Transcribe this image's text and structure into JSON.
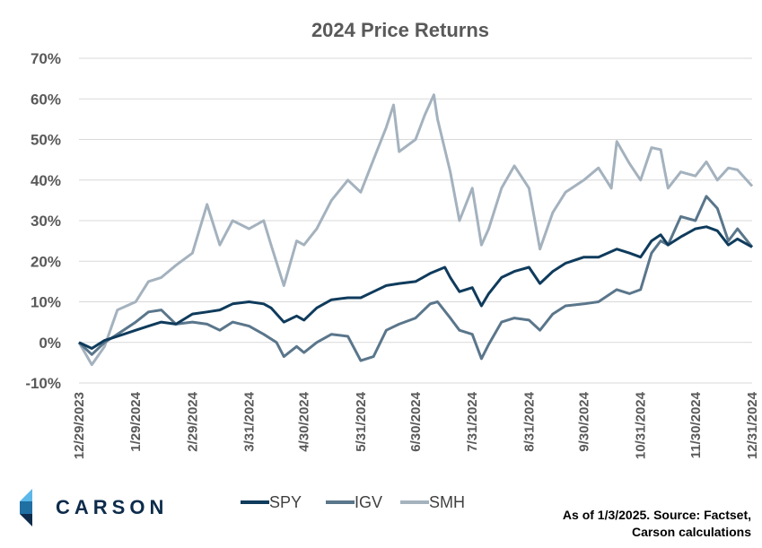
{
  "chart_data": {
    "type": "line",
    "title": "2024 Price Returns",
    "xlabel": "",
    "ylabel": "",
    "ylim": [
      -10,
      70
    ],
    "yticks": [
      "70%",
      "60%",
      "50%",
      "40%",
      "30%",
      "20%",
      "10%",
      "0%",
      "-10%"
    ],
    "ytick_values": [
      70,
      60,
      50,
      40,
      30,
      20,
      10,
      0,
      -10
    ],
    "xticks": [
      "12/29/2023",
      "1/29/2024",
      "2/29/2024",
      "3/31/2024",
      "4/30/2024",
      "5/31/2024",
      "6/30/2024",
      "7/31/2024",
      "8/31/2024",
      "9/30/2024",
      "10/31/2024",
      "11/30/2024",
      "12/31/2024"
    ],
    "grid": "horizontal",
    "legend": "bottom",
    "series": [
      {
        "name": "SPY",
        "color": "#0f3b5c",
        "points": [
          [
            "12/29/2023",
            0
          ],
          [
            "1/5/2024",
            -1.5
          ],
          [
            "1/12/2024",
            0.5
          ],
          [
            "1/19/2024",
            1.5
          ],
          [
            "1/29/2024",
            3
          ],
          [
            "2/5/2024",
            4
          ],
          [
            "2/12/2024",
            5
          ],
          [
            "2/20/2024",
            4.5
          ],
          [
            "2/29/2024",
            7
          ],
          [
            "3/8/2024",
            7.5
          ],
          [
            "3/15/2024",
            8
          ],
          [
            "3/22/2024",
            9.5
          ],
          [
            "3/31/2024",
            10
          ],
          [
            "4/8/2024",
            9.5
          ],
          [
            "4/12/2024",
            8.5
          ],
          [
            "4/19/2024",
            5
          ],
          [
            "4/26/2024",
            6.5
          ],
          [
            "4/30/2024",
            5.5
          ],
          [
            "5/7/2024",
            8.5
          ],
          [
            "5/15/2024",
            10.5
          ],
          [
            "5/24/2024",
            11
          ],
          [
            "5/31/2024",
            11
          ],
          [
            "6/7/2024",
            12.5
          ],
          [
            "6/14/2024",
            14
          ],
          [
            "6/21/2024",
            14.5
          ],
          [
            "6/30/2024",
            15
          ],
          [
            "7/8/2024",
            17
          ],
          [
            "7/16/2024",
            18.5
          ],
          [
            "7/19/2024",
            16
          ],
          [
            "7/24/2024",
            12.5
          ],
          [
            "7/31/2024",
            13.5
          ],
          [
            "8/5/2024",
            9
          ],
          [
            "8/9/2024",
            12
          ],
          [
            "8/16/2024",
            16
          ],
          [
            "8/23/2024",
            17.5
          ],
          [
            "8/31/2024",
            18.5
          ],
          [
            "9/6/2024",
            14.5
          ],
          [
            "9/13/2024",
            17.5
          ],
          [
            "9/20/2024",
            19.5
          ],
          [
            "9/30/2024",
            21
          ],
          [
            "10/8/2024",
            21
          ],
          [
            "10/18/2024",
            23
          ],
          [
            "10/25/2024",
            22
          ],
          [
            "10/31/2024",
            21
          ],
          [
            "11/6/2024",
            25
          ],
          [
            "11/11/2024",
            26.5
          ],
          [
            "11/15/2024",
            24
          ],
          [
            "11/22/2024",
            26
          ],
          [
            "11/30/2024",
            28
          ],
          [
            "12/6/2024",
            28.5
          ],
          [
            "12/12/2024",
            27.5
          ],
          [
            "12/18/2024",
            24
          ],
          [
            "12/23/2024",
            25.5
          ],
          [
            "12/31/2024",
            23.5
          ]
        ]
      },
      {
        "name": "IGV",
        "color": "#5a768b",
        "points": [
          [
            "12/29/2023",
            0
          ],
          [
            "1/5/2024",
            -3
          ],
          [
            "1/12/2024",
            0
          ],
          [
            "1/19/2024",
            2
          ],
          [
            "1/29/2024",
            5
          ],
          [
            "2/5/2024",
            7.5
          ],
          [
            "2/12/2024",
            8
          ],
          [
            "2/20/2024",
            4.5
          ],
          [
            "2/29/2024",
            5
          ],
          [
            "3/8/2024",
            4.5
          ],
          [
            "3/15/2024",
            3
          ],
          [
            "3/22/2024",
            5
          ],
          [
            "3/31/2024",
            4
          ],
          [
            "4/8/2024",
            2
          ],
          [
            "4/15/2024",
            0
          ],
          [
            "4/19/2024",
            -3.5
          ],
          [
            "4/26/2024",
            -1
          ],
          [
            "4/30/2024",
            -2.5
          ],
          [
            "5/7/2024",
            0
          ],
          [
            "5/15/2024",
            2
          ],
          [
            "5/24/2024",
            1.5
          ],
          [
            "5/31/2024",
            -4.5
          ],
          [
            "6/7/2024",
            -3.5
          ],
          [
            "6/14/2024",
            3
          ],
          [
            "6/21/2024",
            4.5
          ],
          [
            "6/30/2024",
            6
          ],
          [
            "7/8/2024",
            9.5
          ],
          [
            "7/12/2024",
            10
          ],
          [
            "7/19/2024",
            6
          ],
          [
            "7/24/2024",
            3
          ],
          [
            "7/31/2024",
            2
          ],
          [
            "8/5/2024",
            -4
          ],
          [
            "8/9/2024",
            -0.5
          ],
          [
            "8/16/2024",
            5
          ],
          [
            "8/23/2024",
            6
          ],
          [
            "8/31/2024",
            5.5
          ],
          [
            "9/6/2024",
            3
          ],
          [
            "9/13/2024",
            7
          ],
          [
            "9/20/2024",
            9
          ],
          [
            "9/30/2024",
            9.5
          ],
          [
            "10/8/2024",
            10
          ],
          [
            "10/18/2024",
            13
          ],
          [
            "10/25/2024",
            12
          ],
          [
            "10/31/2024",
            13
          ],
          [
            "11/6/2024",
            22
          ],
          [
            "11/11/2024",
            25
          ],
          [
            "11/15/2024",
            24
          ],
          [
            "11/22/2024",
            31
          ],
          [
            "11/30/2024",
            30
          ],
          [
            "12/6/2024",
            36
          ],
          [
            "12/12/2024",
            33
          ],
          [
            "12/18/2024",
            25
          ],
          [
            "12/23/2024",
            28
          ],
          [
            "12/31/2024",
            23.5
          ]
        ]
      },
      {
        "name": "SMH",
        "color": "#a4b2be",
        "points": [
          [
            "12/29/2023",
            0
          ],
          [
            "1/5/2024",
            -5.5
          ],
          [
            "1/12/2024",
            -1
          ],
          [
            "1/19/2024",
            8
          ],
          [
            "1/29/2024",
            10
          ],
          [
            "2/5/2024",
            15
          ],
          [
            "2/12/2024",
            16
          ],
          [
            "2/20/2024",
            19
          ],
          [
            "2/29/2024",
            22
          ],
          [
            "3/8/2024",
            34
          ],
          [
            "3/15/2024",
            24
          ],
          [
            "3/22/2024",
            30
          ],
          [
            "3/31/2024",
            28
          ],
          [
            "4/8/2024",
            30
          ],
          [
            "4/12/2024",
            24
          ],
          [
            "4/19/2024",
            14
          ],
          [
            "4/26/2024",
            25
          ],
          [
            "4/30/2024",
            24
          ],
          [
            "5/7/2024",
            28
          ],
          [
            "5/15/2024",
            35
          ],
          [
            "5/24/2024",
            40
          ],
          [
            "5/31/2024",
            37
          ],
          [
            "6/7/2024",
            45
          ],
          [
            "6/14/2024",
            53
          ],
          [
            "6/18/2024",
            58.5
          ],
          [
            "6/21/2024",
            47
          ],
          [
            "6/30/2024",
            50
          ],
          [
            "7/5/2024",
            56
          ],
          [
            "7/10/2024",
            61
          ],
          [
            "7/12/2024",
            55
          ],
          [
            "7/19/2024",
            42
          ],
          [
            "7/24/2024",
            30
          ],
          [
            "7/31/2024",
            38
          ],
          [
            "8/5/2024",
            24
          ],
          [
            "8/9/2024",
            28
          ],
          [
            "8/16/2024",
            38
          ],
          [
            "8/23/2024",
            43.5
          ],
          [
            "8/31/2024",
            38
          ],
          [
            "9/6/2024",
            23
          ],
          [
            "9/13/2024",
            32
          ],
          [
            "9/20/2024",
            37
          ],
          [
            "9/30/2024",
            40
          ],
          [
            "10/8/2024",
            43
          ],
          [
            "10/15/2024",
            38
          ],
          [
            "10/18/2024",
            49.5
          ],
          [
            "10/25/2024",
            44
          ],
          [
            "10/31/2024",
            40
          ],
          [
            "11/6/2024",
            48
          ],
          [
            "11/11/2024",
            47.5
          ],
          [
            "11/15/2024",
            38
          ],
          [
            "11/22/2024",
            42
          ],
          [
            "11/30/2024",
            41
          ],
          [
            "12/6/2024",
            44.5
          ],
          [
            "12/12/2024",
            40
          ],
          [
            "12/18/2024",
            43
          ],
          [
            "12/23/2024",
            42.5
          ],
          [
            "12/31/2024",
            38.5
          ]
        ]
      }
    ]
  },
  "logo": {
    "name": "carson-logo-icon",
    "text": "CARSON",
    "colors": [
      "#5bb8e8",
      "#1f6fa3",
      "#0d2c4b"
    ]
  },
  "source_note": {
    "line1": "As of 1/3/2025. Source: Factset,",
    "line2": "Carson calculations"
  }
}
